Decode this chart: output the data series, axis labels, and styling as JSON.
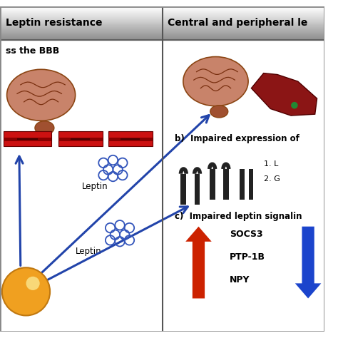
{
  "title_left": "Leptin resistance",
  "title_right": "Central and peripheral le",
  "subtitle_left": "ss the BBB",
  "subtitle_right_b": "b)  Impaired expression of",
  "subtitle_right_c": "c)  Impaired leptin signalin",
  "label_leptin1": "Leptin",
  "label_leptin2": "Leptin",
  "socs3": "SOCS3",
  "ptp1b": "PTP-1B",
  "npy": "NPY",
  "list_item1": "1. L",
  "list_item2": "2. G",
  "arrow_color": "#2244aa",
  "red_arrow_color": "#cc2200",
  "blue_arrow_color": "#1b44cc",
  "bbb_bar_color": "#cc1111",
  "bbb_bar_dark": "#880000",
  "leptin_dot_color": "#3355bb",
  "fat_cell_color": "#f0a020",
  "fat_cell_edge": "#c07810",
  "header_bg": "#d8d8d8",
  "header_light": "#f0f0f0",
  "panel_bg": "#ffffff",
  "divider_color": "#555555",
  "border_color": "#888888"
}
